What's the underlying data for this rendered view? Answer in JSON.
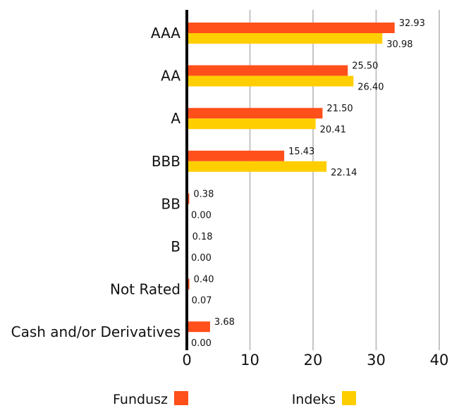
{
  "chart_data": {
    "type": "bar",
    "orientation": "horizontal",
    "categories": [
      "AAA",
      "AA",
      "A",
      "BBB",
      "BB",
      "B",
      "Not Rated",
      "Cash and/or Derivatives"
    ],
    "series": [
      {
        "name": "Fundusz",
        "color": "#ff4f1a",
        "values": [
          32.93,
          25.5,
          21.5,
          15.43,
          0.38,
          0.18,
          0.4,
          3.68
        ],
        "labels": [
          "32.93",
          "25.50",
          "21.50",
          "15.43",
          "0.38",
          "0.18",
          "0.40",
          "3.68"
        ]
      },
      {
        "name": "Indeks",
        "color": "#ffce00",
        "values": [
          30.98,
          26.4,
          20.41,
          22.14,
          0.0,
          0.0,
          0.07,
          0.0
        ],
        "labels": [
          "30.98",
          "26.40",
          "20.41",
          "22.14",
          "0.00",
          "0.00",
          "0.07",
          "0.00"
        ]
      }
    ],
    "xlim": [
      0,
      40
    ],
    "xticks": [
      "0",
      "10",
      "20",
      "30",
      "40"
    ],
    "title": "",
    "xlabel": "",
    "ylabel": "",
    "grid": "vertical",
    "legend": "bottom"
  }
}
